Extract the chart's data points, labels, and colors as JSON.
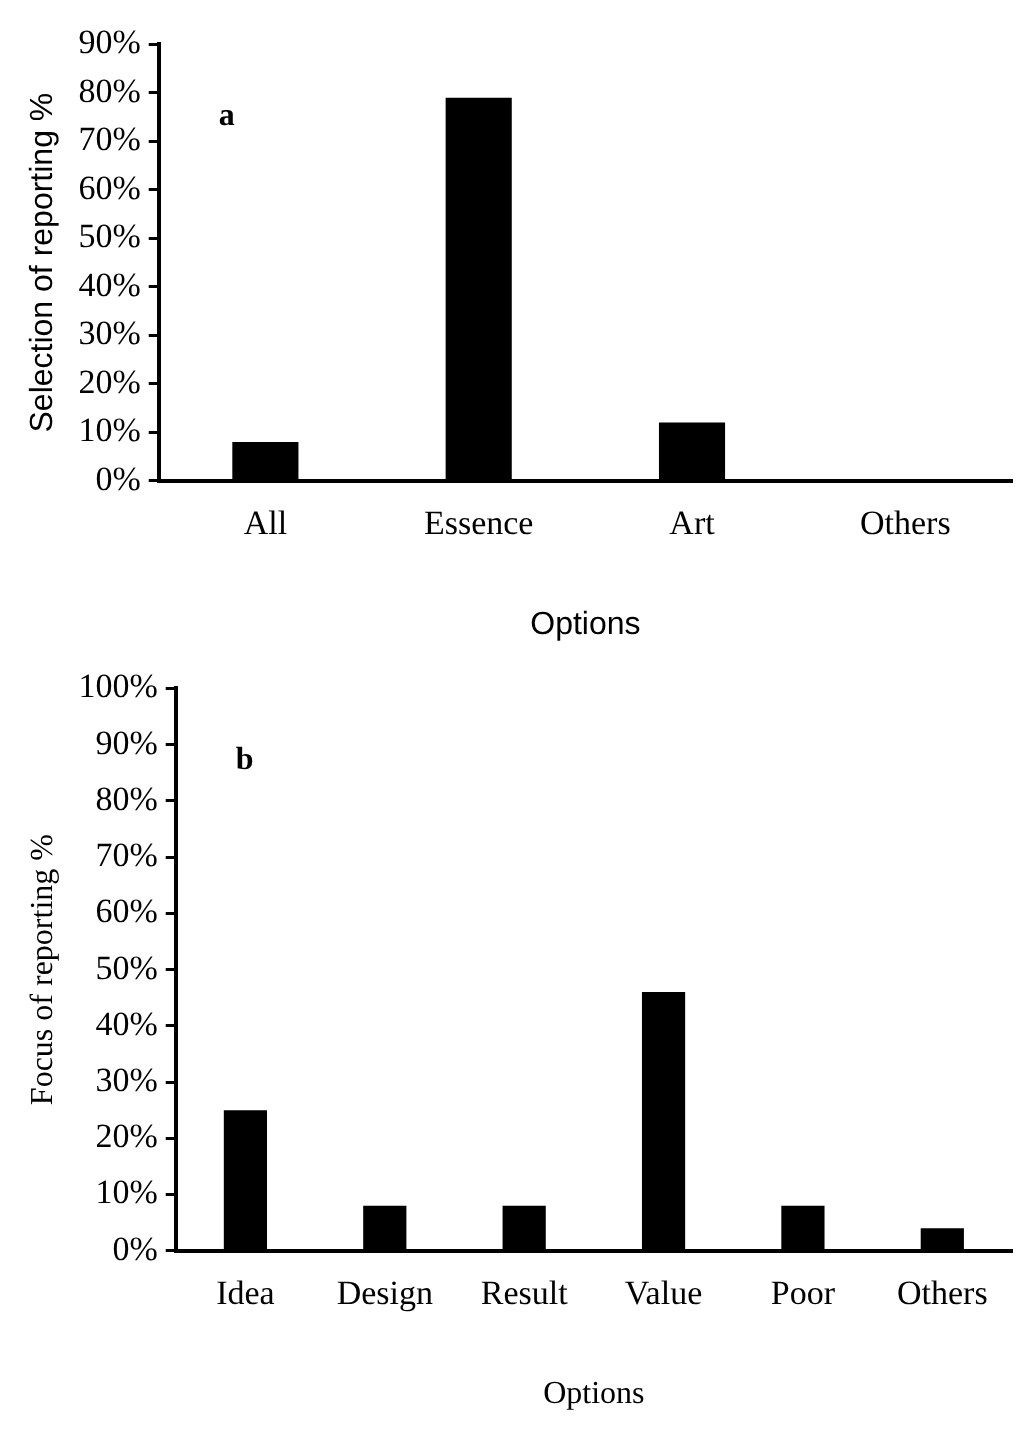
{
  "chart_data": [
    {
      "type": "bar",
      "categories": [
        "All",
        "Essence",
        "Art",
        "Others"
      ],
      "values": [
        8,
        79,
        12,
        0
      ],
      "color": "#000000",
      "ylim": [
        0,
        90
      ],
      "yticks": [
        {
          "value": 0,
          "label": "0%"
        },
        {
          "value": 10,
          "label": "10%"
        },
        {
          "value": 20,
          "label": "20%"
        },
        {
          "value": 30,
          "label": "30%"
        },
        {
          "value": 40,
          "label": "40%"
        },
        {
          "value": 50,
          "label": "50%"
        },
        {
          "value": 60,
          "label": "60%"
        },
        {
          "value": 70,
          "label": "70%"
        },
        {
          "value": 80,
          "label": "80%"
        },
        {
          "value": 90,
          "label": "90%"
        }
      ],
      "xlabel": "Options",
      "ylabel": "Selection of reporting %",
      "annotations": [
        "a"
      ],
      "grid": false,
      "legend": false
    },
    {
      "type": "bar",
      "categories": [
        "Idea",
        "Design",
        "Result",
        "Value",
        "Poor",
        "Others"
      ],
      "values": [
        25,
        8,
        8,
        46,
        8,
        4
      ],
      "color": "#000000",
      "ylim": [
        0,
        100
      ],
      "yticks": [
        {
          "value": 0,
          "label": "0%"
        },
        {
          "value": 10,
          "label": "10%"
        },
        {
          "value": 20,
          "label": "20%"
        },
        {
          "value": 30,
          "label": "30%"
        },
        {
          "value": 40,
          "label": "40%"
        },
        {
          "value": 50,
          "label": "50%"
        },
        {
          "value": 60,
          "label": "60%"
        },
        {
          "value": 70,
          "label": "70%"
        },
        {
          "value": 80,
          "label": "80%"
        },
        {
          "value": 90,
          "label": "90%"
        },
        {
          "value": 100,
          "label": "100%"
        }
      ],
      "xlabel": "Options",
      "ylabel": "Focus of reporting %",
      "annotations": [
        "b"
      ],
      "grid": false,
      "legend": false
    }
  ]
}
